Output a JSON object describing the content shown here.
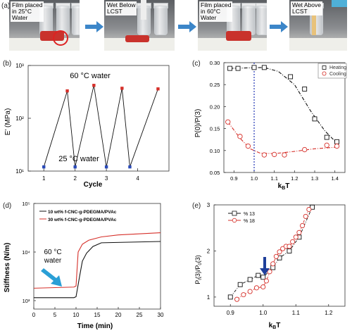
{
  "panels": {
    "a": {
      "letter": "(a)",
      "captions": [
        "Film placed\nin 25°C\nWater",
        "Wet Below\nLCST",
        "Film placed\nin 60°C\nWater",
        "Wet Above\nLCST"
      ]
    },
    "b": {
      "letter": "(b)"
    },
    "c": {
      "letter": "(c)"
    },
    "d": {
      "letter": "(d)"
    },
    "e": {
      "letter": "(e)"
    }
  },
  "colors": {
    "red": "#d6302a",
    "blue": "#2b4bb8",
    "black": "#111111",
    "arrow_cyan": "#2a9fd6",
    "arrow_blue": "#1f3f9a"
  },
  "chart_data": [
    {
      "id": "b",
      "type": "line",
      "xlabel": "Cycle",
      "ylabel": "E' (MPa)",
      "yscale": "log",
      "xticks": [
        "1",
        "2",
        "3",
        "4"
      ],
      "yticks": [
        "10¹",
        "10²",
        "10³"
      ],
      "ylim": [
        10,
        1000
      ],
      "xlim": [
        0.5,
        5.0
      ],
      "x": [
        1.0,
        1.75,
        2.0,
        2.6,
        3.0,
        3.5,
        3.75,
        4.65
      ],
      "y": [
        12,
        330,
        12,
        420,
        12,
        370,
        12,
        360
      ],
      "point_colors": [
        "blue",
        "red",
        "blue",
        "red",
        "blue",
        "red",
        "blue",
        "red"
      ],
      "annotations": [
        "60 °C water",
        "25 °C water"
      ]
    },
    {
      "id": "c",
      "type": "scatter",
      "xlabel": "k_BT",
      "ylabel": "P(0)/P(3)",
      "xlim": [
        0.85,
        1.45
      ],
      "ylim": [
        0.05,
        0.3
      ],
      "xticks": [
        "0.9",
        "1.0",
        "1.1",
        "1.2",
        "1.3",
        "1.4"
      ],
      "yticks": [
        "0.05",
        "0.10",
        "0.15",
        "0.20",
        "0.25",
        "0.30"
      ],
      "legend": [
        "Heating",
        "Cooling"
      ],
      "series": [
        {
          "name": "Heating",
          "x": [
            0.88,
            0.92,
            1.0,
            1.05,
            1.18,
            1.25,
            1.3,
            1.36,
            1.41
          ],
          "y": [
            0.287,
            0.287,
            0.289,
            0.289,
            0.268,
            0.24,
            0.172,
            0.13,
            0.12
          ]
        },
        {
          "name": "Cooling",
          "x": [
            0.87,
            0.93,
            0.97,
            1.05,
            1.1,
            1.15,
            1.25,
            1.36,
            1.41
          ],
          "y": [
            0.165,
            0.132,
            0.11,
            0.09,
            0.091,
            0.09,
            0.102,
            0.112,
            0.11
          ]
        }
      ],
      "vline_x": 1.0
    },
    {
      "id": "d",
      "type": "line",
      "xlabel": "Time (min)",
      "ylabel": "Stiffness (N/m)",
      "yscale": "log",
      "xlim": [
        0,
        30
      ],
      "ylim": [
        1000,
        100000
      ],
      "xticks": [
        "0",
        "5",
        "10",
        "15",
        "20",
        "25",
        "30"
      ],
      "yticks": [
        "10³",
        "10⁴",
        "10⁵"
      ],
      "legend": [
        "10 wt% f-CNC-g-PDEGMA/PVAc",
        "30 wt% f-CNC-g-PDEGMA/PVAc"
      ],
      "series": [
        {
          "name": "10 wt% f-CNC-g-PDEGMA/PVAc",
          "x": [
            0,
            9.5,
            10.0,
            10.8,
            11.5,
            12.5,
            14,
            16,
            30
          ],
          "y": [
            1150,
            1150,
            1200,
            3000,
            6500,
            9500,
            13000,
            15500,
            16500
          ]
        },
        {
          "name": "30 wt% f-CNC-g-PDEGMA/PVAc",
          "x": [
            0,
            9.5,
            10.0,
            10.5,
            11.5,
            13,
            16,
            20,
            30
          ],
          "y": [
            1800,
            1900,
            2000,
            10000,
            14500,
            17500,
            20500,
            22500,
            25000
          ]
        }
      ],
      "annotations": [
        "60 °C",
        "water"
      ]
    },
    {
      "id": "e",
      "type": "scatter",
      "xlabel": "k_BT",
      "ylabel": "P_t(3)/P_0(3)",
      "xlim": [
        0.85,
        1.25
      ],
      "ylim": [
        0.8,
        3.0
      ],
      "xticks": [
        "0.9",
        "1.0",
        "1.1",
        "1.2"
      ],
      "yticks": [
        "1",
        "2",
        "3"
      ],
      "legend": [
        "% 13",
        "% 18"
      ],
      "series": [
        {
          "name": "% 13",
          "x": [
            0.9,
            0.93,
            0.96,
            0.985,
            1.0,
            1.03,
            1.05,
            1.08,
            1.11,
            1.15
          ],
          "y": [
            1.0,
            1.27,
            1.38,
            1.47,
            1.43,
            1.64,
            1.85,
            2.0,
            2.3,
            2.95
          ]
        },
        {
          "name": "% 18",
          "x": [
            0.92,
            0.94,
            0.96,
            0.98,
            1.0,
            1.01,
            1.02,
            1.03,
            1.04,
            1.05,
            1.06,
            1.07,
            1.08,
            1.09,
            1.1,
            1.11,
            1.12,
            1.13,
            1.14
          ],
          "y": [
            0.95,
            1.05,
            1.12,
            1.2,
            1.22,
            1.35,
            1.55,
            1.72,
            1.88,
            1.98,
            2.05,
            2.1,
            2.1,
            2.2,
            2.3,
            2.4,
            2.55,
            2.75,
            2.9
          ]
        }
      ]
    }
  ]
}
